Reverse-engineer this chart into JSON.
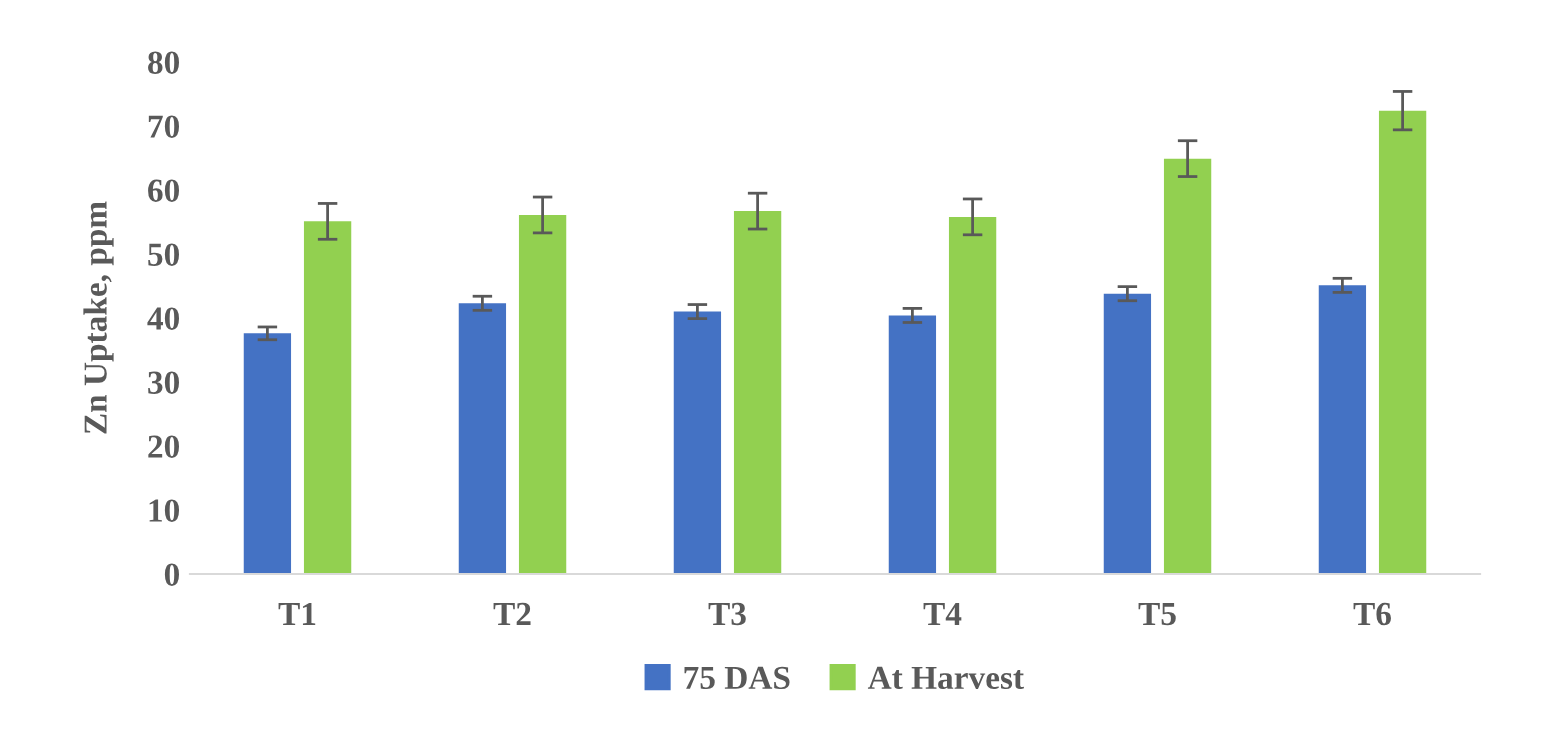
{
  "chart_data": {
    "type": "bar",
    "ylabel": "Zn Uptake, ppm",
    "categories": [
      "T1",
      "T2",
      "T3",
      "T4",
      "T5",
      "T6"
    ],
    "series": [
      {
        "name": "75 DAS",
        "color": "#4472c4",
        "values": [
          37.6,
          42.3,
          41.0,
          40.4,
          43.8,
          45.1
        ],
        "errors": [
          1.0,
          1.1,
          1.1,
          1.1,
          1.1,
          1.1
        ]
      },
      {
        "name": "At Harvest",
        "color": "#92d050",
        "values": [
          55.1,
          56.1,
          56.7,
          55.8,
          64.9,
          72.4
        ],
        "errors": [
          2.8,
          2.8,
          2.8,
          2.8,
          2.8,
          3.0
        ]
      }
    ],
    "ylim": [
      0,
      80
    ],
    "yticks": [
      0,
      10,
      20,
      30,
      40,
      50,
      60,
      70,
      80
    ],
    "grid": false,
    "legend": "bottom"
  }
}
